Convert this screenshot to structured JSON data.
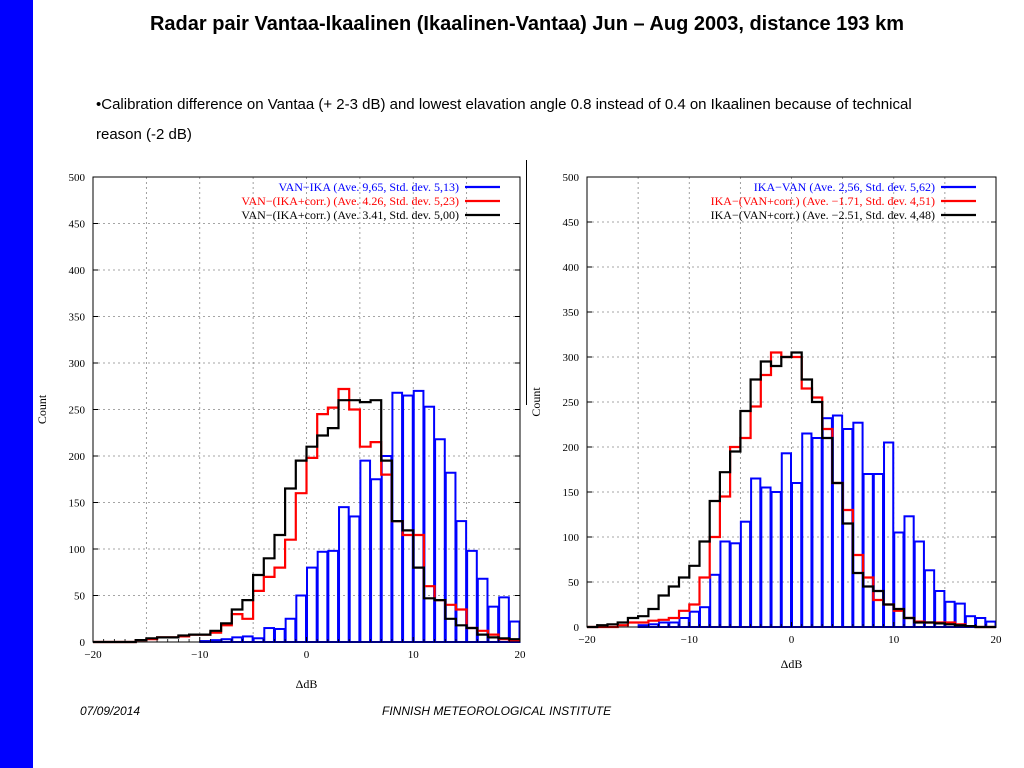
{
  "slide": {
    "title": "Radar pair Vantaa-Ikaalinen (Ikaalinen-Vantaa) Jun – Aug 2003, distance 193 km",
    "bullet": "•Calibration difference on Vantaa (+ 2-3 dB) and lowest elavation angle 0.8  instead of 0.4 on Ikaalinen because of technical reason (-2 dB)",
    "footer_date": "07/09/2014",
    "footer_org": "FINNISH METEOROLOGICAL INSTITUTE",
    "accent_color": "#0000ff"
  },
  "chart_data": [
    {
      "type": "histogram",
      "xlabel": "ΔdB",
      "ylabel": "Count",
      "xlim": [
        -20,
        20
      ],
      "ylim": [
        0,
        500
      ],
      "xticks": [
        -20,
        -10,
        0,
        10,
        20
      ],
      "yticks": [
        0,
        50,
        100,
        150,
        200,
        250,
        300,
        350,
        400,
        450,
        500
      ],
      "grid": true,
      "legend_position": "top-right",
      "series": [
        {
          "name": "VAN−IKA (Ave. 9,65, Std. dev. 5,13)",
          "color": "#0000ff",
          "style": "bars",
          "x": [
            -10,
            -9,
            -8,
            -7,
            -6,
            -5,
            -4,
            -3,
            -2,
            -1,
            0,
            1,
            2,
            3,
            4,
            5,
            6,
            7,
            8,
            9,
            10,
            11,
            12,
            13,
            14,
            15,
            16,
            17,
            18,
            19
          ],
          "values": [
            1,
            2,
            3,
            5,
            6,
            4,
            15,
            14,
            25,
            50,
            80,
            97,
            98,
            145,
            135,
            195,
            175,
            200,
            268,
            265,
            270,
            253,
            218,
            182,
            130,
            98,
            68,
            38,
            48,
            22
          ]
        },
        {
          "name": "VAN−(IKA+corr.) (Ave. 4.26, Std. dev. 5,23)",
          "color": "#ff0000",
          "style": "step",
          "x": [
            -20,
            -19,
            -18,
            -17,
            -16,
            -15,
            -14,
            -13,
            -12,
            -11,
            -10,
            -9,
            -8,
            -7,
            -6,
            -5,
            -4,
            -3,
            -2,
            -1,
            0,
            1,
            2,
            3,
            4,
            5,
            6,
            7,
            8,
            9,
            10,
            11,
            12,
            13,
            14,
            15,
            16,
            17,
            18,
            19
          ],
          "values": [
            0,
            0,
            0,
            0,
            2,
            3,
            5,
            5,
            6,
            8,
            8,
            10,
            18,
            30,
            25,
            55,
            70,
            80,
            110,
            160,
            198,
            245,
            252,
            272,
            250,
            210,
            215,
            180,
            130,
            115,
            115,
            60,
            45,
            40,
            35,
            15,
            12,
            8,
            3,
            2
          ]
        },
        {
          "name": "VAN−(IKA+corr.) (Ave. 3.41, Std. dev. 5,00)",
          "color": "#000000",
          "style": "step",
          "x": [
            -20,
            -19,
            -18,
            -17,
            -16,
            -15,
            -14,
            -13,
            -12,
            -11,
            -10,
            -9,
            -8,
            -7,
            -6,
            -5,
            -4,
            -3,
            -2,
            -1,
            0,
            1,
            2,
            3,
            4,
            5,
            6,
            7,
            8,
            9,
            10,
            11,
            12,
            13,
            14,
            15,
            16,
            17,
            18,
            19
          ],
          "values": [
            0,
            0,
            0,
            0,
            2,
            4,
            5,
            5,
            7,
            8,
            8,
            12,
            20,
            35,
            45,
            72,
            90,
            115,
            165,
            195,
            210,
            222,
            230,
            260,
            260,
            258,
            260,
            195,
            130,
            120,
            80,
            47,
            45,
            25,
            18,
            15,
            8,
            5,
            4,
            3
          ]
        }
      ]
    },
    {
      "type": "histogram",
      "xlabel": "ΔdB",
      "ylabel": "Count",
      "xlim": [
        -20,
        20
      ],
      "ylim": [
        0,
        500
      ],
      "xticks": [
        -20,
        -10,
        0,
        10,
        20
      ],
      "yticks": [
        0,
        50,
        100,
        150,
        200,
        250,
        300,
        350,
        400,
        450,
        500
      ],
      "grid": true,
      "legend_position": "top-right",
      "series": [
        {
          "name": "IKA−VAN (Ave. 2,56, Std. dev. 5,62)",
          "color": "#0000ff",
          "style": "bars",
          "x": [
            -19,
            -18,
            -17,
            -16,
            -15,
            -14,
            -13,
            -12,
            -11,
            -10,
            -9,
            -8,
            -7,
            -6,
            -5,
            -4,
            -3,
            -2,
            -1,
            0,
            1,
            2,
            3,
            4,
            5,
            6,
            7,
            8,
            9,
            10,
            11,
            12,
            13,
            14,
            15,
            16,
            17,
            18,
            19
          ],
          "values": [
            0,
            0,
            0,
            0,
            2,
            3,
            5,
            5,
            10,
            17,
            22,
            58,
            95,
            93,
            117,
            165,
            155,
            150,
            193,
            160,
            215,
            210,
            232,
            235,
            220,
            227,
            170,
            170,
            205,
            105,
            123,
            95,
            63,
            40,
            28,
            26,
            12,
            10,
            6
          ]
        },
        {
          "name": "IKA−(VAN+corr.) (Ave. −1.71, Std. dev. 4,51)",
          "color": "#ff0000",
          "style": "step",
          "x": [
            -20,
            -19,
            -18,
            -17,
            -16,
            -15,
            -14,
            -13,
            -12,
            -11,
            -10,
            -9,
            -8,
            -7,
            -6,
            -5,
            -4,
            -3,
            -2,
            -1,
            0,
            1,
            2,
            3,
            4,
            5,
            6,
            7,
            8,
            9,
            10,
            11,
            12,
            13,
            14,
            15,
            16,
            17,
            18,
            19
          ],
          "values": [
            0,
            0,
            0,
            2,
            5,
            5,
            7,
            8,
            10,
            18,
            25,
            55,
            100,
            145,
            200,
            210,
            245,
            280,
            305,
            300,
            300,
            265,
            255,
            220,
            160,
            130,
            80,
            55,
            30,
            25,
            18,
            10,
            6,
            5,
            5,
            5,
            3,
            1,
            0,
            0
          ]
        },
        {
          "name": "IKA−(VAN+corr.) (Ave. −2.51, Std. dev. 4,48)",
          "color": "#000000",
          "style": "step",
          "x": [
            -20,
            -19,
            -18,
            -17,
            -16,
            -15,
            -14,
            -13,
            -12,
            -11,
            -10,
            -9,
            -8,
            -7,
            -6,
            -5,
            -4,
            -3,
            -2,
            -1,
            0,
            1,
            2,
            3,
            4,
            5,
            6,
            7,
            8,
            9,
            10,
            11,
            12,
            13,
            14,
            15,
            16,
            17,
            18,
            19
          ],
          "values": [
            0,
            2,
            3,
            5,
            10,
            12,
            20,
            35,
            45,
            55,
            68,
            95,
            140,
            172,
            195,
            240,
            275,
            295,
            290,
            300,
            305,
            275,
            250,
            210,
            160,
            115,
            60,
            45,
            40,
            25,
            20,
            10,
            5,
            5,
            4,
            3,
            2,
            1,
            0,
            0
          ]
        }
      ]
    }
  ]
}
